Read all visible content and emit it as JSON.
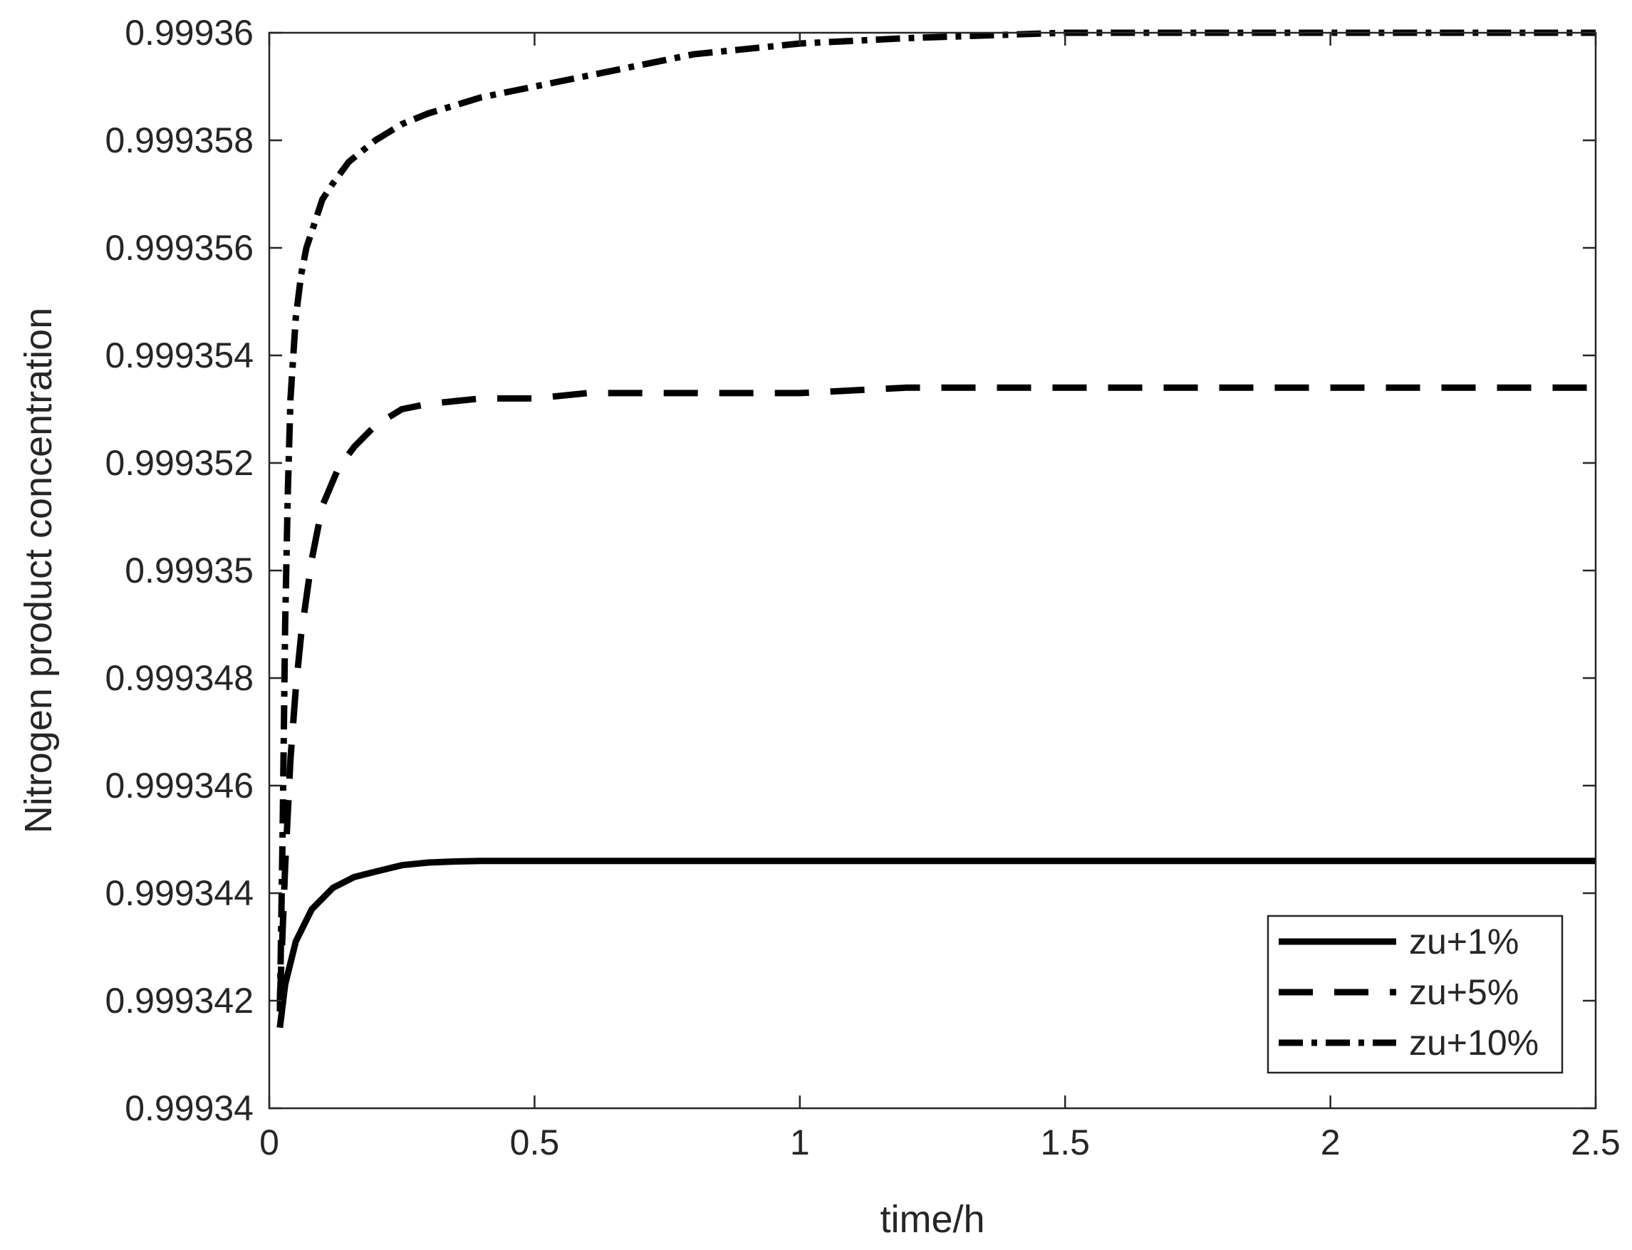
{
  "chart_data": {
    "type": "line",
    "title": "",
    "xlabel": "time/h",
    "ylabel": "Nitrogen product concentration",
    "xlim": [
      0,
      2.5
    ],
    "ylim": [
      0.99934,
      0.99936
    ],
    "x_ticks": [
      0,
      0.5,
      1,
      1.5,
      2,
      2.5
    ],
    "x_tick_labels": [
      "0",
      "0.5",
      "1",
      "1.5",
      "2",
      "2.5"
    ],
    "y_ticks": [
      0.99934,
      0.999342,
      0.999344,
      0.999346,
      0.999348,
      0.99935,
      0.999352,
      0.999354,
      0.999356,
      0.999358,
      0.99936
    ],
    "y_tick_labels": [
      "0.99934",
      "0.999342",
      "0.999344",
      "0.999346",
      "0.999348",
      "0.99935",
      "0.999352",
      "0.999354",
      "0.999356",
      "0.999358",
      "0.99936"
    ],
    "grid": false,
    "legend_position": "bottom-right",
    "line_color": "#000000",
    "series": [
      {
        "name": "zu+1%",
        "style": "solid",
        "x": [
          0.02,
          0.03,
          0.05,
          0.08,
          0.12,
          0.16,
          0.2,
          0.25,
          0.3,
          0.35,
          0.4,
          0.5,
          0.6,
          0.8,
          1.0,
          1.5,
          2.0,
          2.5
        ],
        "y": [
          0.9993415,
          0.9993423,
          0.9993431,
          0.9993437,
          0.9993441,
          0.9993443,
          0.9993444,
          0.99934452,
          0.99934457,
          0.99934459,
          0.9993446,
          0.9993446,
          0.9993446,
          0.9993446,
          0.9993446,
          0.9993446,
          0.9993446,
          0.9993446
        ]
      },
      {
        "name": "zu+5%",
        "style": "dashed",
        "x": [
          0.02,
          0.03,
          0.04,
          0.05,
          0.06,
          0.08,
          0.1,
          0.13,
          0.16,
          0.2,
          0.25,
          0.3,
          0.4,
          0.5,
          0.6,
          0.7,
          0.8,
          1.0,
          1.2,
          1.5,
          2.0,
          2.5
        ],
        "y": [
          0.999342,
          0.9993445,
          0.9993465,
          0.9993478,
          0.9993488,
          0.9993502,
          0.9993512,
          0.9993519,
          0.9993523,
          0.9993527,
          0.999353,
          0.9993531,
          0.9993532,
          0.9993532,
          0.9993533,
          0.9993533,
          0.9993533,
          0.9993533,
          0.9993534,
          0.9993534,
          0.9993534,
          0.9993534
        ]
      },
      {
        "name": "zu+10%",
        "style": "dash-dot",
        "x": [
          0.02,
          0.025,
          0.03,
          0.035,
          0.04,
          0.05,
          0.06,
          0.07,
          0.08,
          0.1,
          0.12,
          0.15,
          0.2,
          0.25,
          0.3,
          0.4,
          0.5,
          0.6,
          0.7,
          0.8,
          0.9,
          1.0,
          1.2,
          1.5,
          2.0,
          2.5
        ],
        "y": [
          0.9993418,
          0.999345,
          0.999349,
          0.9993515,
          0.9993532,
          0.9993547,
          0.9993555,
          0.999356,
          0.9993563,
          0.9993569,
          0.9993572,
          0.9993576,
          0.999358,
          0.9993583,
          0.9993585,
          0.9993588,
          0.999359,
          0.9993592,
          0.9993594,
          0.9993596,
          0.9993597,
          0.9993598,
          0.9993599,
          0.99936,
          0.99936,
          0.99936
        ]
      }
    ]
  }
}
